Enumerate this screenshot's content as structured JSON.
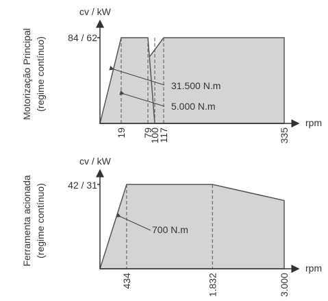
{
  "colors": {
    "area": "#d4d4d4",
    "line": "#555555",
    "text": "#333333"
  },
  "chart_data": [
    {
      "type": "area",
      "title": "",
      "ylabel_lines": [
        "Motorização Principal",
        "(regime contínuo)"
      ],
      "y_unit": "cv / kW",
      "x_unit": "rpm",
      "y_tick_label": "84 / 62",
      "x_ticks": [
        "19",
        "79",
        "100",
        "117",
        "335"
      ],
      "xlim": [
        0,
        350
      ],
      "ylim": [
        0,
        84
      ],
      "series": [
        {
          "name": "31.500 N.m",
          "x": [
            0,
            19,
            79,
            100,
            335
          ],
          "y": [
            0,
            84,
            84,
            0,
            0
          ]
        },
        {
          "name": "5.000 N.m",
          "x": [
            0,
            117,
            335
          ],
          "y": [
            0,
            84,
            84
          ]
        }
      ],
      "annotations": [
        "31.500 N.m",
        "5.000 N.m"
      ]
    },
    {
      "type": "area",
      "title": "",
      "ylabel_lines": [
        "Ferramenta acionada",
        "(regime contínuo)"
      ],
      "y_unit": "cv / kW",
      "x_unit": "rpm",
      "y_tick_label": "42 / 31",
      "x_ticks": [
        "434",
        "1.832",
        "3.000"
      ],
      "xlim": [
        0,
        3000
      ],
      "ylim": [
        0,
        42
      ],
      "series": [
        {
          "name": "700 N.m",
          "x": [
            0,
            434,
            1832,
            3000
          ],
          "y": [
            0,
            42,
            42,
            34
          ]
        }
      ],
      "annotations": [
        "700 N.m"
      ]
    }
  ]
}
